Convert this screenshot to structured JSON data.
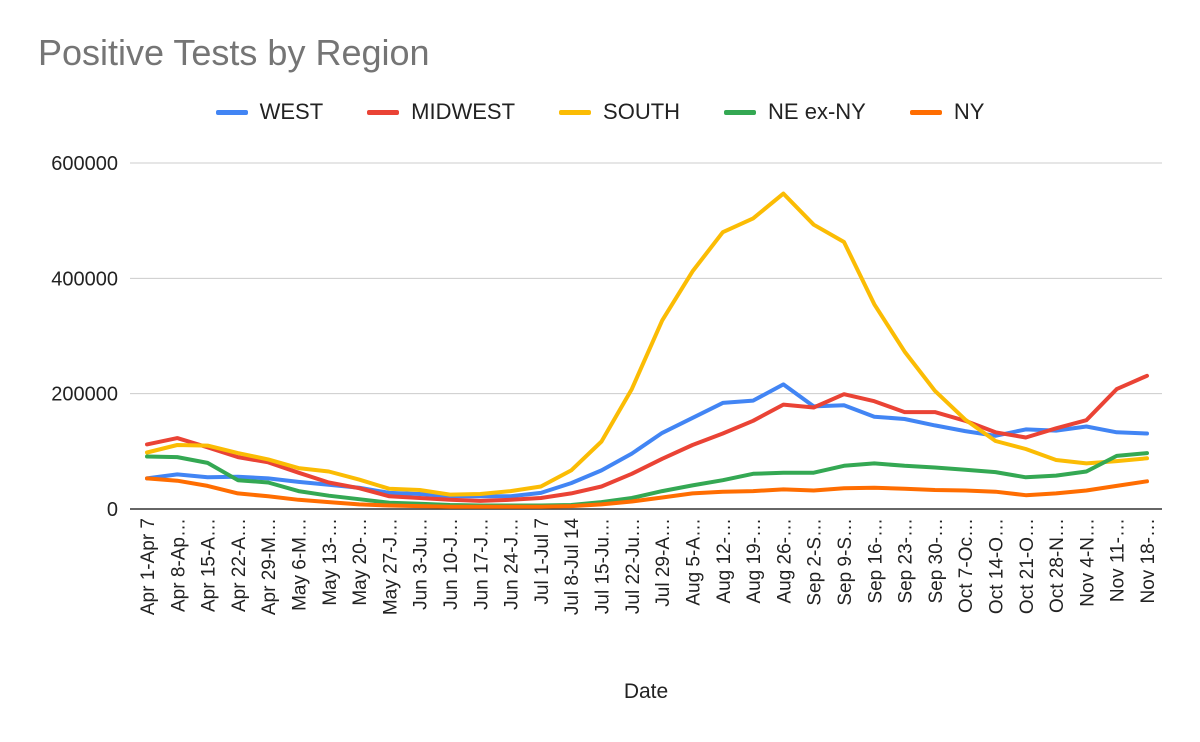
{
  "chart_data": {
    "type": "line",
    "title": "Positive Tests by Region",
    "xlabel": "Date",
    "ylabel": "",
    "ylim": [
      0,
      600000
    ],
    "yticks": [
      0,
      200000,
      400000,
      600000
    ],
    "ytick_labels": [
      "0",
      "200000",
      "400000",
      "600000"
    ],
    "grid": true,
    "legend_position": "top",
    "categories": [
      "Apr 1-Apr 7",
      "Apr 8-Ap…",
      "Apr 15-A…",
      "Apr 22-A…",
      "Apr 29-M…",
      "May 6-M…",
      "May 13-…",
      "May 20-…",
      "May 27-J…",
      "Jun 3-Ju…",
      "Jun 10-J…",
      "Jun 17-J…",
      "Jun 24-J…",
      "Jul 1-Jul 7",
      "Jul 8-Jul 14",
      "Jul 15-Ju…",
      "Jul 22-Ju…",
      "Jul 29-A…",
      "Aug 5-A…",
      "Aug 12-…",
      "Aug 19-…",
      "Aug 26-…",
      "Sep 2-S…",
      "Sep 9-S…",
      "Sep 16-…",
      "Sep 23-…",
      "Sep 30-…",
      "Oct 7-Oc…",
      "Oct 14-O…",
      "Oct 21-O…",
      "Oct 28-N…",
      "Nov 4-N…",
      "Nov 11-…",
      "Nov 18-…"
    ],
    "series": [
      {
        "name": "WEST",
        "color": "#4285f4",
        "values": [
          53000,
          60000,
          55000,
          56000,
          53000,
          47000,
          42000,
          37000,
          28000,
          26000,
          22000,
          22000,
          22000,
          28000,
          45000,
          67000,
          96000,
          132000,
          158000,
          184000,
          188000,
          216000,
          178000,
          180000,
          160000,
          156000,
          145000,
          135000,
          127000,
          138000,
          136000,
          143000,
          133000,
          131000
        ]
      },
      {
        "name": "MIDWEST",
        "color": "#ea4335",
        "values": [
          112000,
          123000,
          107000,
          90000,
          81000,
          63000,
          46000,
          36000,
          22000,
          19000,
          16000,
          14000,
          16000,
          19000,
          27000,
          39000,
          61000,
          87000,
          111000,
          131000,
          153000,
          181000,
          176000,
          199000,
          187000,
          168000,
          168000,
          153000,
          133000,
          124000,
          140000,
          154000,
          208000,
          231000
        ]
      },
      {
        "name": "SOUTH",
        "color": "#fbbc04",
        "values": [
          98000,
          111000,
          110000,
          97000,
          86000,
          71000,
          65000,
          51000,
          35000,
          33000,
          25000,
          26000,
          31000,
          39000,
          67000,
          117000,
          208000,
          327000,
          412000,
          480000,
          504000,
          547000,
          493000,
          463000,
          355000,
          273000,
          205000,
          155000,
          118000,
          104000,
          85000,
          79000,
          83000,
          88000
        ]
      },
      {
        "name": "NE ex-NY",
        "color": "#34a853",
        "values": [
          91000,
          90000,
          80000,
          50000,
          46000,
          31000,
          23000,
          17000,
          11000,
          9000,
          7000,
          6000,
          6000,
          6000,
          7000,
          12000,
          19000,
          31000,
          41000,
          50000,
          61000,
          63000,
          63000,
          75000,
          79000,
          75000,
          72000,
          68000,
          64000,
          55000,
          58000,
          65000,
          92000,
          97000
        ]
      },
      {
        "name": "NY",
        "color": "#ff6d01",
        "values": [
          53000,
          49000,
          40000,
          27000,
          22000,
          16000,
          12000,
          8000,
          6000,
          5000,
          4000,
          4000,
          4000,
          4000,
          5000,
          8000,
          13000,
          20000,
          27000,
          30000,
          31000,
          34000,
          32000,
          36000,
          37000,
          35000,
          33000,
          32000,
          30000,
          24000,
          27000,
          32000,
          40000,
          48000
        ]
      }
    ]
  }
}
